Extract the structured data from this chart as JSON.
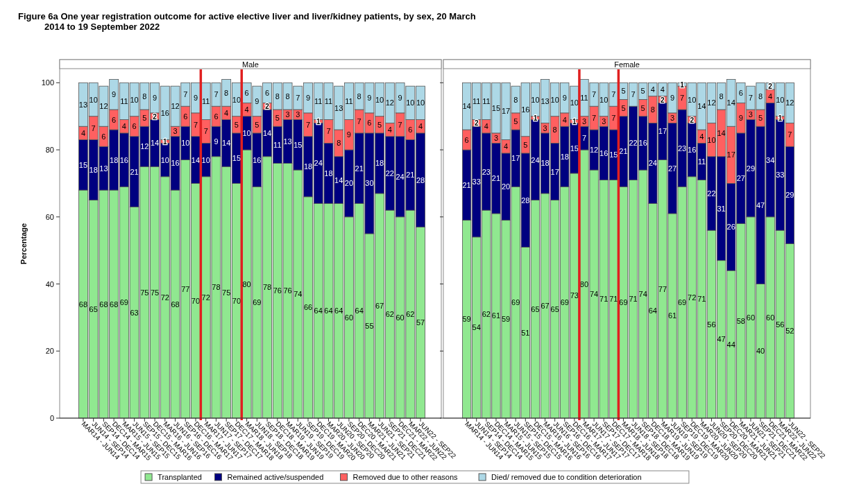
{
  "chart_data": [
    {
      "type": "bar",
      "title": "Figure 6a One year registration outcome for active elective liver and liver/kidney patients, by sex, 20 March 2014 to 19 September 2022",
      "subtitle": "Male",
      "ylabel": "Percentage",
      "stacked": true,
      "data_labels": true,
      "legend": "bottom",
      "ylim": [
        0,
        104
      ],
      "yticks": [
        0,
        20,
        40,
        60,
        80,
        100
      ],
      "categories": [
        "MAR14 - JUN14",
        "JUN14 - SEP14",
        "SEP14 - DEC14",
        "DEC14 - MAR15",
        "MAR15 - JUN15",
        "JUN15 - SEP15",
        "SEP15 - DEC15",
        "DEC15 - MAR16",
        "MAR16 - JUN16",
        "JUN16 - SEP16",
        "SEP16 - DEC16",
        "DEC16 - MAR17",
        "MAR17 - JUN17",
        "JUN17 - SEP17",
        "SEP17 - DEC17",
        "DEC17 - MAR18",
        "MAR18 - JUN18",
        "JUN18 - SEP18",
        "SEP18 - DEC18",
        "DEC18 - MAR19",
        "MAR19 - JUN19",
        "JUN19 - SEP19",
        "SEP19 - DEC19",
        "DEC19 - MAR20",
        "MAR20 - JUN20",
        "JUN20 - SEP20",
        "SEP20 - DEC20",
        "DEC20 - MAR21",
        "MAR21 - JUN21",
        "JUN21 - SEP21",
        "SEP21 - DEC21",
        "DEC21 - MAR22",
        "MAR22 - JUN22",
        "JUN22 - SEP22"
      ],
      "series": [
        {
          "name": "Transplanted",
          "color": "#90e890",
          "values": [
            68,
            65,
            68,
            68,
            69,
            63,
            75,
            75,
            72,
            68,
            77,
            70,
            72,
            78,
            75,
            70,
            80,
            69,
            78,
            76,
            76,
            74,
            66,
            64,
            64,
            64,
            60,
            64,
            55,
            67,
            62,
            60,
            62,
            57
          ]
        },
        {
          "name": "Remained active/suspended",
          "color": "#000080",
          "values": [
            15,
            18,
            13,
            18,
            16,
            21,
            12,
            14,
            10,
            16,
            10,
            14,
            10,
            9,
            14,
            15,
            10,
            16,
            14,
            11,
            13,
            15,
            18,
            24,
            18,
            14,
            20,
            21,
            30,
            18,
            22,
            24,
            21,
            28
          ]
        },
        {
          "name": "Removed due to other reasons",
          "color": "#ff6060",
          "values": [
            4,
            7,
            6,
            6,
            4,
            6,
            5,
            2,
            1,
            3,
            6,
            7,
            7,
            6,
            4,
            5,
            4,
            5,
            2,
            5,
            3,
            3,
            7,
            1,
            7,
            8,
            9,
            7,
            6,
            5,
            4,
            7,
            6,
            4
          ]
        },
        {
          "name": "Died/ removed due to condition deterioration",
          "color": "#add8e6",
          "values": [
            13,
            10,
            12,
            9,
            11,
            10,
            8,
            9,
            16,
            12,
            7,
            9,
            11,
            7,
            8,
            10,
            6,
            9,
            6,
            8,
            8,
            7,
            9,
            11,
            11,
            13,
            11,
            8,
            9,
            10,
            12,
            9,
            10,
            10
          ]
        }
      ]
    },
    {
      "type": "bar",
      "subtitle": "Female",
      "stacked": true,
      "data_labels": true,
      "tick_labels": "x",
      "ylim": [
        0,
        104
      ],
      "yticks": [
        0,
        20,
        40,
        60,
        80,
        100
      ],
      "categories": [
        "MAR14 - JUN14",
        "JUN14 - SEP14",
        "SEP14 - DEC14",
        "DEC14 - MAR15",
        "MAR15 - JUN15",
        "JUN15 - SEP15",
        "SEP15 - DEC15",
        "DEC15 - MAR16",
        "MAR16 - JUN16",
        "JUN16 - SEP16",
        "SEP16 - DEC16",
        "DEC16 - MAR17",
        "MAR17 - JUN17",
        "JUN17 - SEP17",
        "SEP17 - DEC17",
        "DEC17 - MAR18",
        "MAR18 - JUN18",
        "JUN18 - SEP18",
        "SEP18 - DEC18",
        "DEC18 - MAR19",
        "MAR19 - JUN19",
        "JUN19 - SEP19",
        "SEP19 - DEC19",
        "DEC19 - MAR20",
        "MAR20 - JUN20",
        "JUN20 - SEP20",
        "SEP20 - DEC20",
        "DEC20 - MAR21",
        "MAR21 - JUN21",
        "JUN21 - SEP21",
        "SEP21 - DEC21",
        "DEC21 - MAR22",
        "MAR22 - JUN22",
        "JUN22 - SEP22"
      ],
      "series": [
        {
          "name": "Transplanted",
          "color": "#90e890",
          "values": [
            59,
            54,
            62,
            61,
            59,
            69,
            51,
            65,
            67,
            65,
            69,
            73,
            80,
            74,
            71,
            71,
            69,
            71,
            74,
            64,
            77,
            61,
            69,
            72,
            71,
            56,
            47,
            44,
            58,
            60,
            40,
            60,
            56,
            52
          ]
        },
        {
          "name": "Remained active/suspended",
          "color": "#000080",
          "values": [
            21,
            33,
            23,
            21,
            20,
            17,
            28,
            24,
            18,
            17,
            18,
            15,
            7,
            12,
            16,
            15,
            21,
            22,
            16,
            24,
            17,
            27,
            23,
            16,
            11,
            22,
            31,
            26,
            27,
            29,
            47,
            34,
            33,
            29
          ]
        },
        {
          "name": "Removed due to other reasons",
          "color": "#ff6060",
          "values": [
            6,
            2,
            4,
            3,
            4,
            5,
            5,
            1,
            3,
            8,
            4,
            1,
            3,
            7,
            3,
            7,
            5,
            null,
            5,
            8,
            2,
            3,
            7,
            2,
            4,
            10,
            14,
            17,
            9,
            3,
            5,
            4,
            1,
            7
          ]
        },
        {
          "name": "Died/ removed due to condition deterioration",
          "color": "#add8e6",
          "values": [
            14,
            11,
            11,
            15,
            17,
            8,
            16,
            10,
            13,
            10,
            9,
            10,
            11,
            7,
            10,
            7,
            5,
            7,
            5,
            4,
            4,
            9,
            1,
            10,
            14,
            12,
            8,
            14,
            6,
            7,
            8,
            2,
            10,
            12
          ]
        }
      ]
    }
  ]
}
